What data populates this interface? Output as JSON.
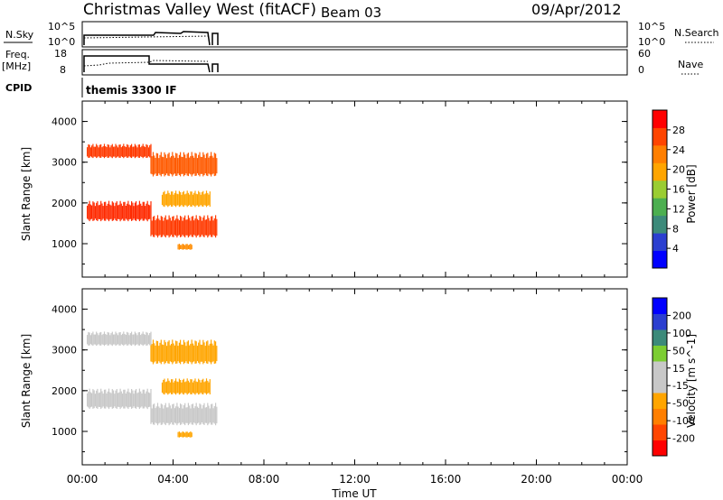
{
  "header": {
    "site": "Christmas Valley West (fitACF)",
    "beam": "Beam 03",
    "date": "09/Apr/2012"
  },
  "strips": {
    "nsky": {
      "label": "N.Sky",
      "ticks": [
        "10^5",
        "10^0"
      ],
      "right_ticks": [
        "10^5",
        "10^0"
      ],
      "right_label": "N.Search"
    },
    "freq": {
      "label_line1": "Freq.",
      "label_line2": "[MHz]",
      "ticks": [
        "18",
        "8"
      ],
      "right_ticks": [
        "60",
        "0"
      ],
      "right_label": "Nave"
    },
    "cpid": {
      "label": "CPID",
      "program": "themis 3300 IF"
    }
  },
  "chart_data": [
    {
      "type": "heatmap",
      "panel": "power",
      "ylabel": "Slant Range [km]",
      "yticks": [
        "4000",
        "3000",
        "2000",
        "1000"
      ],
      "ylim": [
        180,
        4500
      ],
      "xlim": [
        0,
        24
      ],
      "colorbar": {
        "label": "Power [dB]",
        "ticks": [
          "28",
          "24",
          "20",
          "16",
          "12",
          "8",
          "4"
        ],
        "colors": [
          "#0000ff",
          "#2b3fd0",
          "#3c8a7a",
          "#4caf50",
          "#9acd32",
          "#ffa500",
          "#ff7f00",
          "#ff4500",
          "#ff0000"
        ]
      },
      "bands": [
        {
          "t0": 0.2,
          "t1": 3.0,
          "r0": 1550,
          "r1": 2050,
          "color": "#ff2a00"
        },
        {
          "t0": 0.2,
          "t1": 3.0,
          "r0": 3100,
          "r1": 3450,
          "color": "#ff3a00"
        },
        {
          "t0": 3.0,
          "t1": 5.9,
          "r0": 1150,
          "r1": 1700,
          "color": "#ff3a00"
        },
        {
          "t0": 3.0,
          "t1": 5.9,
          "r0": 2650,
          "r1": 3250,
          "color": "#ff5a00"
        },
        {
          "t0": 3.5,
          "t1": 5.6,
          "r0": 1900,
          "r1": 2300,
          "color": "#ffa500"
        },
        {
          "t0": 4.2,
          "t1": 4.8,
          "r0": 850,
          "r1": 1000,
          "color": "#ff8c00"
        }
      ]
    },
    {
      "type": "heatmap",
      "panel": "velocity",
      "ylabel": "Slant Range [km]",
      "yticks": [
        "4000",
        "3000",
        "2000",
        "1000"
      ],
      "ylim": [
        180,
        4500
      ],
      "xlim": [
        0,
        24
      ],
      "xticks": [
        "00:00",
        "04:00",
        "08:00",
        "12:00",
        "16:00",
        "20:00",
        "00:00"
      ],
      "xlabel": "Time UT",
      "colorbar": {
        "label": "Velocity [m s^-1]",
        "ticks": [
          "200",
          "100",
          "50",
          "15",
          "-15",
          "-50",
          "-100",
          "-200"
        ],
        "colors": [
          "#ff0000",
          "#ff4500",
          "#ff7f00",
          "#ffa500",
          "#c8c8c8",
          "#c8c8c8",
          "#7ccd32",
          "#3c8a7a",
          "#2b3fd0",
          "#0000ff"
        ]
      },
      "bands": [
        {
          "t0": 0.2,
          "t1": 3.0,
          "r0": 1550,
          "r1": 2050,
          "color": "#c8c8c8"
        },
        {
          "t0": 0.2,
          "t1": 3.0,
          "r0": 3100,
          "r1": 3450,
          "color": "#c8c8c8"
        },
        {
          "t0": 3.0,
          "t1": 5.9,
          "r0": 1150,
          "r1": 1700,
          "color": "#c8c8c8"
        },
        {
          "t0": 3.0,
          "t1": 5.9,
          "r0": 2650,
          "r1": 3250,
          "color": "#ffa500"
        },
        {
          "t0": 3.5,
          "t1": 5.6,
          "r0": 1900,
          "r1": 2300,
          "color": "#ffa500"
        },
        {
          "t0": 4.2,
          "t1": 4.8,
          "r0": 850,
          "r1": 1000,
          "color": "#ffa500"
        }
      ]
    }
  ]
}
